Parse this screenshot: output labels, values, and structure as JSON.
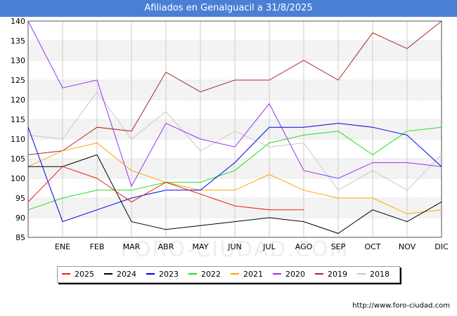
{
  "title": "Afiliados en Genalguacil a 31/8/2025",
  "source": "http://www.foro-ciudad.com",
  "watermark": "FORO-CIUDAD.COM",
  "chart_data": {
    "type": "line",
    "categories": [
      "",
      "ENE",
      "FEB",
      "MAR",
      "ABR",
      "MAY",
      "JUN",
      "JUL",
      "AGO",
      "SEP",
      "OCT",
      "NOV",
      "DIC"
    ],
    "ylim": [
      85,
      140
    ],
    "yticks": [
      85,
      90,
      95,
      100,
      105,
      110,
      115,
      120,
      125,
      130,
      135,
      140
    ],
    "grid": true,
    "legend_position": "bottom",
    "series": [
      {
        "name": "2025",
        "color": "#e8211e",
        "values": [
          94,
          103,
          100,
          94,
          99,
          96,
          93,
          92,
          92,
          null,
          null,
          null,
          null
        ]
      },
      {
        "name": "2024",
        "color": "#000000",
        "values": [
          103,
          103,
          106,
          89,
          87,
          88,
          89,
          90,
          89,
          86,
          92,
          89,
          94
        ]
      },
      {
        "name": "2023",
        "color": "#0000ee",
        "values": [
          113,
          89,
          92,
          95,
          97,
          97,
          104,
          113,
          113,
          114,
          113,
          111,
          103
        ]
      },
      {
        "name": "2022",
        "color": "#22dd22",
        "values": [
          92,
          95,
          97,
          97,
          99,
          99,
          102,
          109,
          111,
          112,
          106,
          112,
          113
        ]
      },
      {
        "name": "2021",
        "color": "#ffa500",
        "values": [
          103,
          107,
          109,
          102,
          99,
          97,
          97,
          101,
          97,
          95,
          95,
          91,
          92
        ]
      },
      {
        "name": "2020",
        "color": "#9a33ee",
        "values": [
          140,
          123,
          125,
          98,
          114,
          110,
          108,
          119,
          102,
          100,
          104,
          104,
          103
        ]
      },
      {
        "name": "2019",
        "color": "#a52a2a",
        "values": [
          106,
          107,
          113,
          112,
          127,
          122,
          125,
          125,
          130,
          125,
          137,
          133,
          140
        ]
      },
      {
        "name": "2018",
        "color": "#c8c8c8",
        "values": [
          111,
          110,
          122,
          110,
          117,
          107,
          112,
          108,
          109,
          97,
          102,
          97,
          106
        ]
      }
    ]
  }
}
